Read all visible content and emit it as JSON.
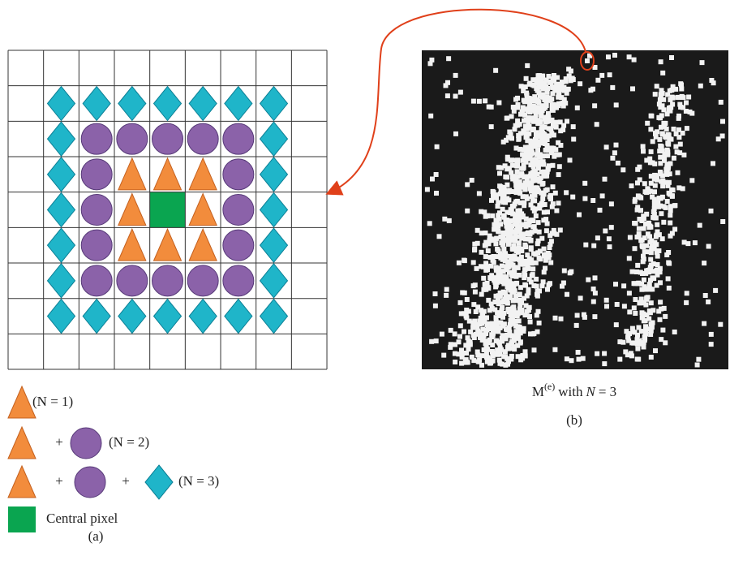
{
  "legend": {
    "rows": [
      {
        "label": "(N = 1)"
      },
      {
        "operators": [
          "+"
        ],
        "label": "(N = 2)"
      },
      {
        "operators": [
          "+",
          "+"
        ],
        "label": "(N = 3)"
      },
      {
        "label": "Central pixel"
      }
    ]
  },
  "caption_a": "(a)",
  "caption_b": {
    "symbol": "M",
    "superscript": "(e)",
    "text": "with",
    "variable": "N",
    "equals": "= 3"
  },
  "label_b": "(b)"
}
